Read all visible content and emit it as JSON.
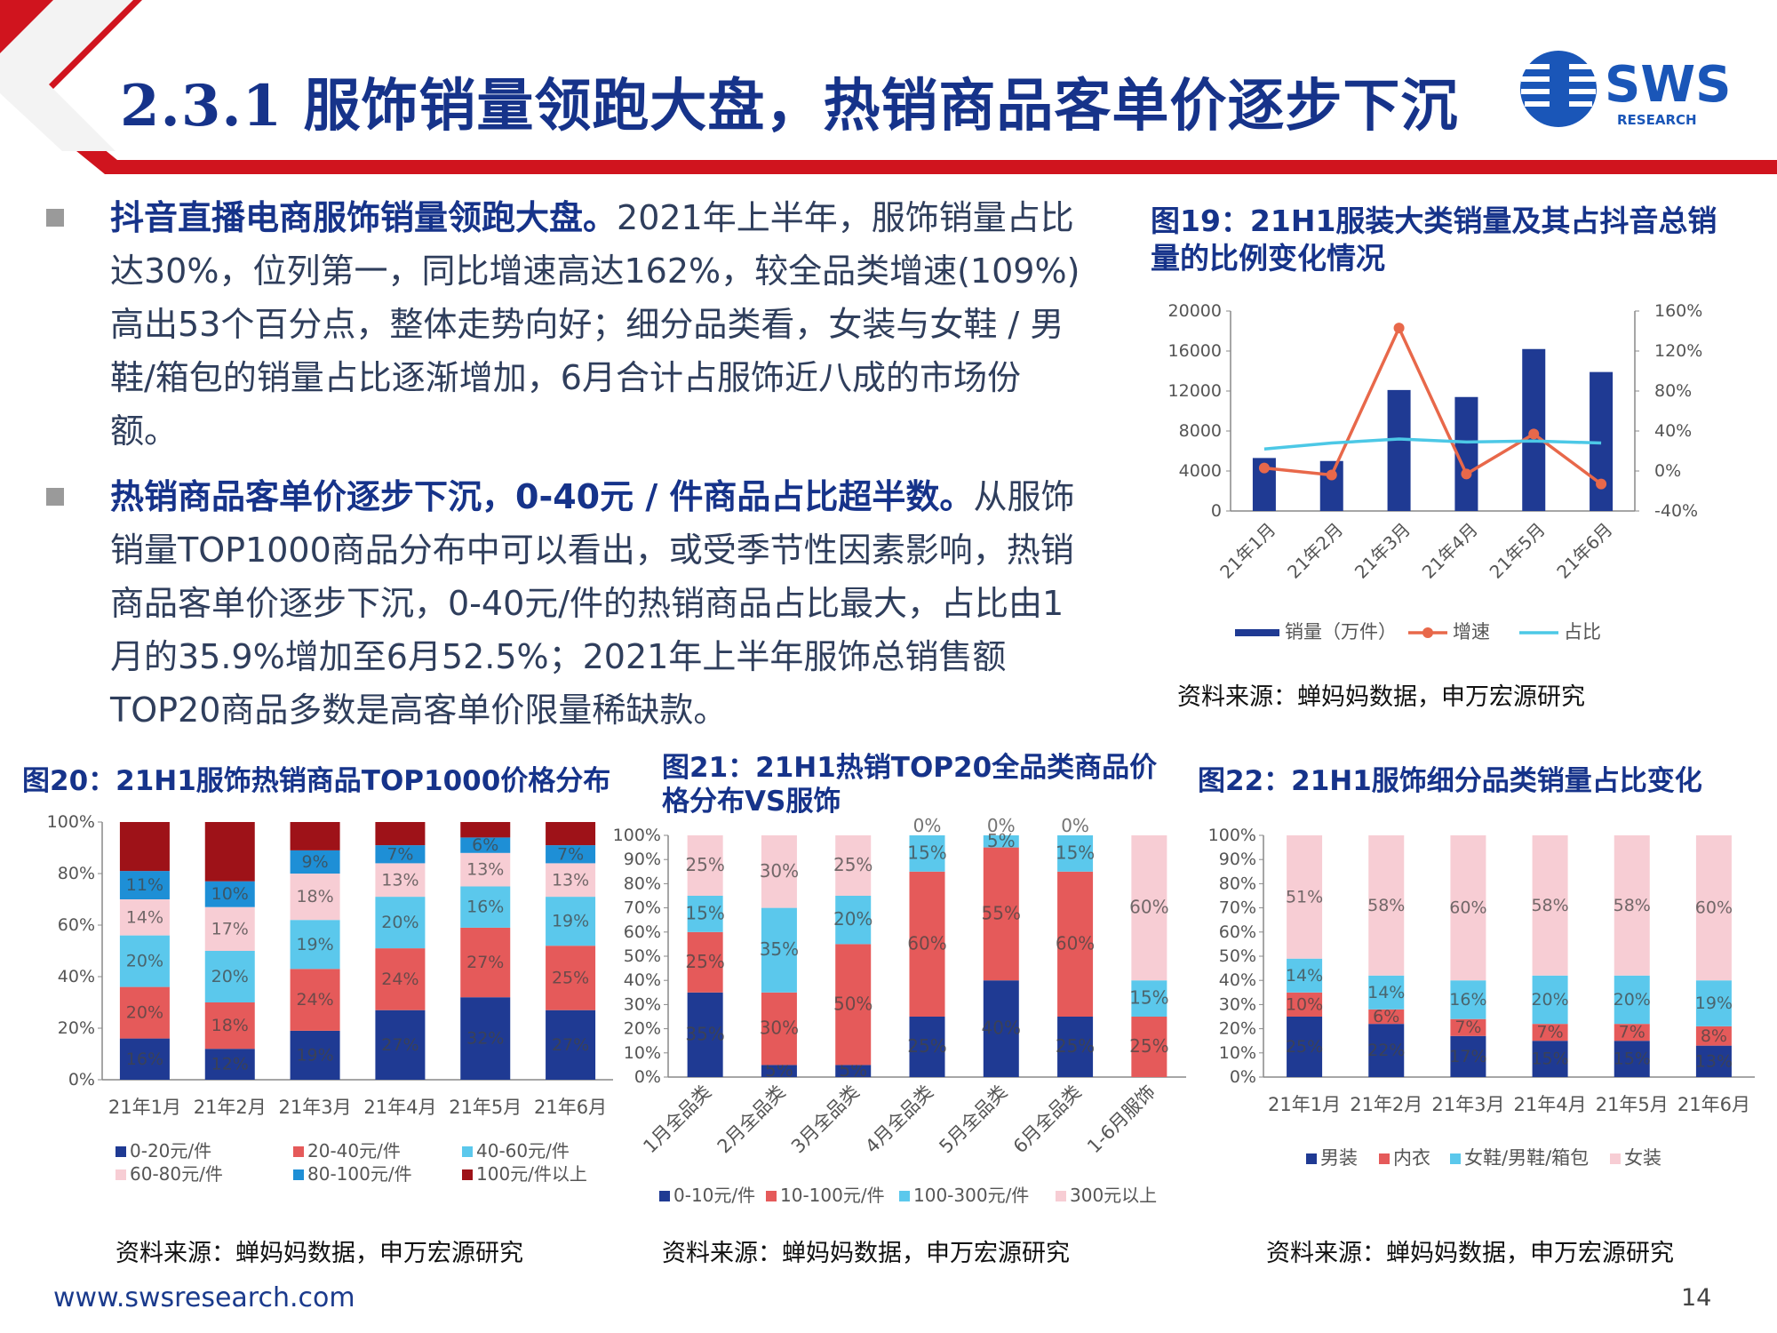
{
  "header": {
    "title": "2.3.1 服饰销量领跑大盘，热销商品客单价逐步下沉",
    "logo_text": "SWS",
    "logo_subtext": "RESEARCH",
    "accent_red": "#d0141e",
    "brand_blue": "#16338a"
  },
  "bullets": [
    {
      "lead": "抖音直播电商服饰销量领跑大盘。",
      "text": "2021年上半年，服饰销量占比达30%，位列第一，同比增速高达162%，较全品类增速(109%)高出53个百分点，整体走势向好；细分品类看，女装与女鞋 / 男鞋/箱包的销量占比逐渐增加，6月合计占服饰近八成的市场份额。"
    },
    {
      "lead": "热销商品客单价逐步下沉，0-40元 / 件商品占比超半数。",
      "text": "从服饰销量TOP1000商品分布中可以看出，或受季节性因素影响，热销商品客单价逐步下沉，0-40元/件的热销商品占比最大，占比由1月的35.9%增加至6月52.5%；2021年上半年服饰总销售额TOP20商品多数是高客单价限量稀缺款。"
    }
  ],
  "figures": {
    "fig19": {
      "title": "图19：21H1服装大类销量及其占抖音总销量的比例变化情况",
      "source": "资料来源：蝉妈妈数据，申万宏源研究"
    },
    "fig20": {
      "title": "图20：21H1服饰热销商品TOP1000价格分布",
      "source": "资料来源：蝉妈妈数据，申万宏源研究"
    },
    "fig21": {
      "title": "图21：21H1热销TOP20全品类商品价格分布VS服饰",
      "source": "资料来源：蝉妈妈数据，申万宏源研究"
    },
    "fig22": {
      "title": "图22：21H1服饰细分品类销量占比变化",
      "source": "资料来源：蝉妈妈数据，申万宏源研究"
    }
  },
  "footer": {
    "url": "www.swsresearch.com",
    "page": "14"
  },
  "chart_data": [
    {
      "id": "fig19",
      "type": "bar",
      "categories": [
        "21年1月",
        "21年2月",
        "21年3月",
        "21年4月",
        "21年5月",
        "21年6月"
      ],
      "series": [
        {
          "name": "销量（万件）",
          "kind": "bar",
          "axis": "left",
          "color": "#1f3a93",
          "values": [
            5300,
            5000,
            12100,
            11400,
            16200,
            13900
          ]
        },
        {
          "name": "增速",
          "kind": "line",
          "axis": "right",
          "color": "#e8684a",
          "values": [
            3,
            -4,
            143,
            -3,
            37,
            -13
          ]
        },
        {
          "name": "占比",
          "kind": "line",
          "axis": "right",
          "color": "#4cc8e6",
          "values": [
            22,
            28,
            32,
            29,
            30,
            28
          ]
        }
      ],
      "ylim": [
        0,
        20000
      ],
      "yticks": [
        "0",
        "4000",
        "8000",
        "12000",
        "16000",
        "20000"
      ],
      "y2lim": [
        -40,
        160
      ],
      "y2ticks": [
        "-40%",
        "0%",
        "40%",
        "80%",
        "120%",
        "160%"
      ],
      "legend": "bottom"
    },
    {
      "id": "fig20",
      "type": "bar",
      "stacked": true,
      "categories": [
        "21年1月",
        "21年2月",
        "21年3月",
        "21年4月",
        "21年5月",
        "21年6月"
      ],
      "series": [
        {
          "name": "0-20元/件",
          "color": "#1f3a93",
          "values": [
            16,
            12,
            19,
            27,
            32,
            27
          ],
          "labels": [
            "16%",
            "12%",
            "19%",
            "27%",
            "32%",
            "27%"
          ]
        },
        {
          "name": "20-40元/件",
          "color": "#e55a5a",
          "values": [
            20,
            18,
            24,
            24,
            27,
            25
          ],
          "labels": [
            "20%",
            "18%",
            "24%",
            "24%",
            "27%",
            "25%"
          ]
        },
        {
          "name": "40-60元/件",
          "color": "#5bc8ec",
          "values": [
            20,
            20,
            19,
            20,
            16,
            19
          ],
          "labels": [
            "20%",
            "20%",
            "19%",
            "20%",
            "16%",
            "19%"
          ]
        },
        {
          "name": "60-80元/件",
          "color": "#f7cdd4",
          "values": [
            14,
            17,
            18,
            13,
            13,
            13
          ],
          "labels": [
            "14%",
            "17%",
            "18%",
            "13%",
            "13%",
            "13%"
          ]
        },
        {
          "name": "80-100元/件",
          "color": "#1e8fd6",
          "values": [
            11,
            10,
            9,
            7,
            6,
            7
          ],
          "labels": [
            "11%",
            "10%",
            "9%",
            "7%",
            "6%",
            "7%"
          ]
        },
        {
          "name": "100元/件以上",
          "color": "#9e1218",
          "values": [
            19,
            23,
            11,
            9,
            6,
            9
          ],
          "labels": [
            "",
            "",
            "",
            "",
            "",
            ""
          ]
        }
      ],
      "ylim": [
        0,
        100
      ],
      "yticks": [
        "0%",
        "20%",
        "40%",
        "60%",
        "80%",
        "100%"
      ],
      "legend": "bottom"
    },
    {
      "id": "fig21",
      "type": "bar",
      "stacked": true,
      "categories": [
        "1月全品类",
        "2月全品类",
        "3月全品类",
        "4月全品类",
        "5月全品类",
        "6月全品类",
        "1-6月服饰"
      ],
      "series": [
        {
          "name": "0-10元/件",
          "color": "#1f3a93",
          "values": [
            35,
            5,
            5,
            25,
            40,
            25,
            0
          ],
          "labels": [
            "35%",
            "5%",
            "5%",
            "25%",
            "40%",
            "25%",
            "0%"
          ]
        },
        {
          "name": "10-100元/件",
          "color": "#e55a5a",
          "values": [
            25,
            30,
            50,
            60,
            55,
            60,
            25
          ],
          "labels": [
            "25%",
            "30%",
            "50%",
            "60%",
            "55%",
            "60%",
            "25%"
          ]
        },
        {
          "name": "100-300元/件",
          "color": "#5bc8ec",
          "values": [
            15,
            35,
            20,
            15,
            5,
            15,
            15
          ],
          "labels": [
            "15%",
            "35%",
            "20%",
            "15%",
            "5%",
            "15%",
            "15%"
          ]
        },
        {
          "name": "300元以上",
          "color": "#f7cdd4",
          "values": [
            25,
            30,
            25,
            0,
            0,
            0,
            60
          ],
          "labels": [
            "25%",
            "30%",
            "25%",
            "0%",
            "0%",
            "0%",
            "60%"
          ]
        }
      ],
      "ylim": [
        0,
        100
      ],
      "yticks": [
        "0%",
        "10%",
        "20%",
        "30%",
        "40%",
        "50%",
        "60%",
        "70%",
        "80%",
        "90%",
        "100%"
      ],
      "legend": "bottom"
    },
    {
      "id": "fig22",
      "type": "bar",
      "stacked": true,
      "categories": [
        "21年1月",
        "21年2月",
        "21年3月",
        "21年4月",
        "21年5月",
        "21年6月"
      ],
      "series": [
        {
          "name": "男装",
          "color": "#1f3a93",
          "values": [
            25,
            22,
            17,
            15,
            15,
            13
          ],
          "labels": [
            "25%",
            "22%",
            "17%",
            "15%",
            "15%",
            "13%"
          ]
        },
        {
          "name": "内衣",
          "color": "#e55a5a",
          "values": [
            10,
            6,
            7,
            7,
            7,
            8
          ],
          "labels": [
            "10%",
            "6%",
            "7%",
            "7%",
            "7%",
            "8%"
          ]
        },
        {
          "name": "女鞋/男鞋/箱包",
          "color": "#5bc8ec",
          "values": [
            14,
            14,
            16,
            20,
            20,
            19
          ],
          "labels": [
            "14%",
            "14%",
            "16%",
            "20%",
            "20%",
            "19%"
          ]
        },
        {
          "name": "女装",
          "color": "#f7cdd4",
          "values": [
            51,
            58,
            60,
            58,
            58,
            60
          ],
          "labels": [
            "51%",
            "58%",
            "60%",
            "58%",
            "58%",
            "60%"
          ]
        }
      ],
      "ylim": [
        0,
        100
      ],
      "yticks": [
        "0%",
        "10%",
        "20%",
        "30%",
        "40%",
        "50%",
        "60%",
        "70%",
        "80%",
        "90%",
        "100%"
      ],
      "legend": "bottom"
    }
  ]
}
